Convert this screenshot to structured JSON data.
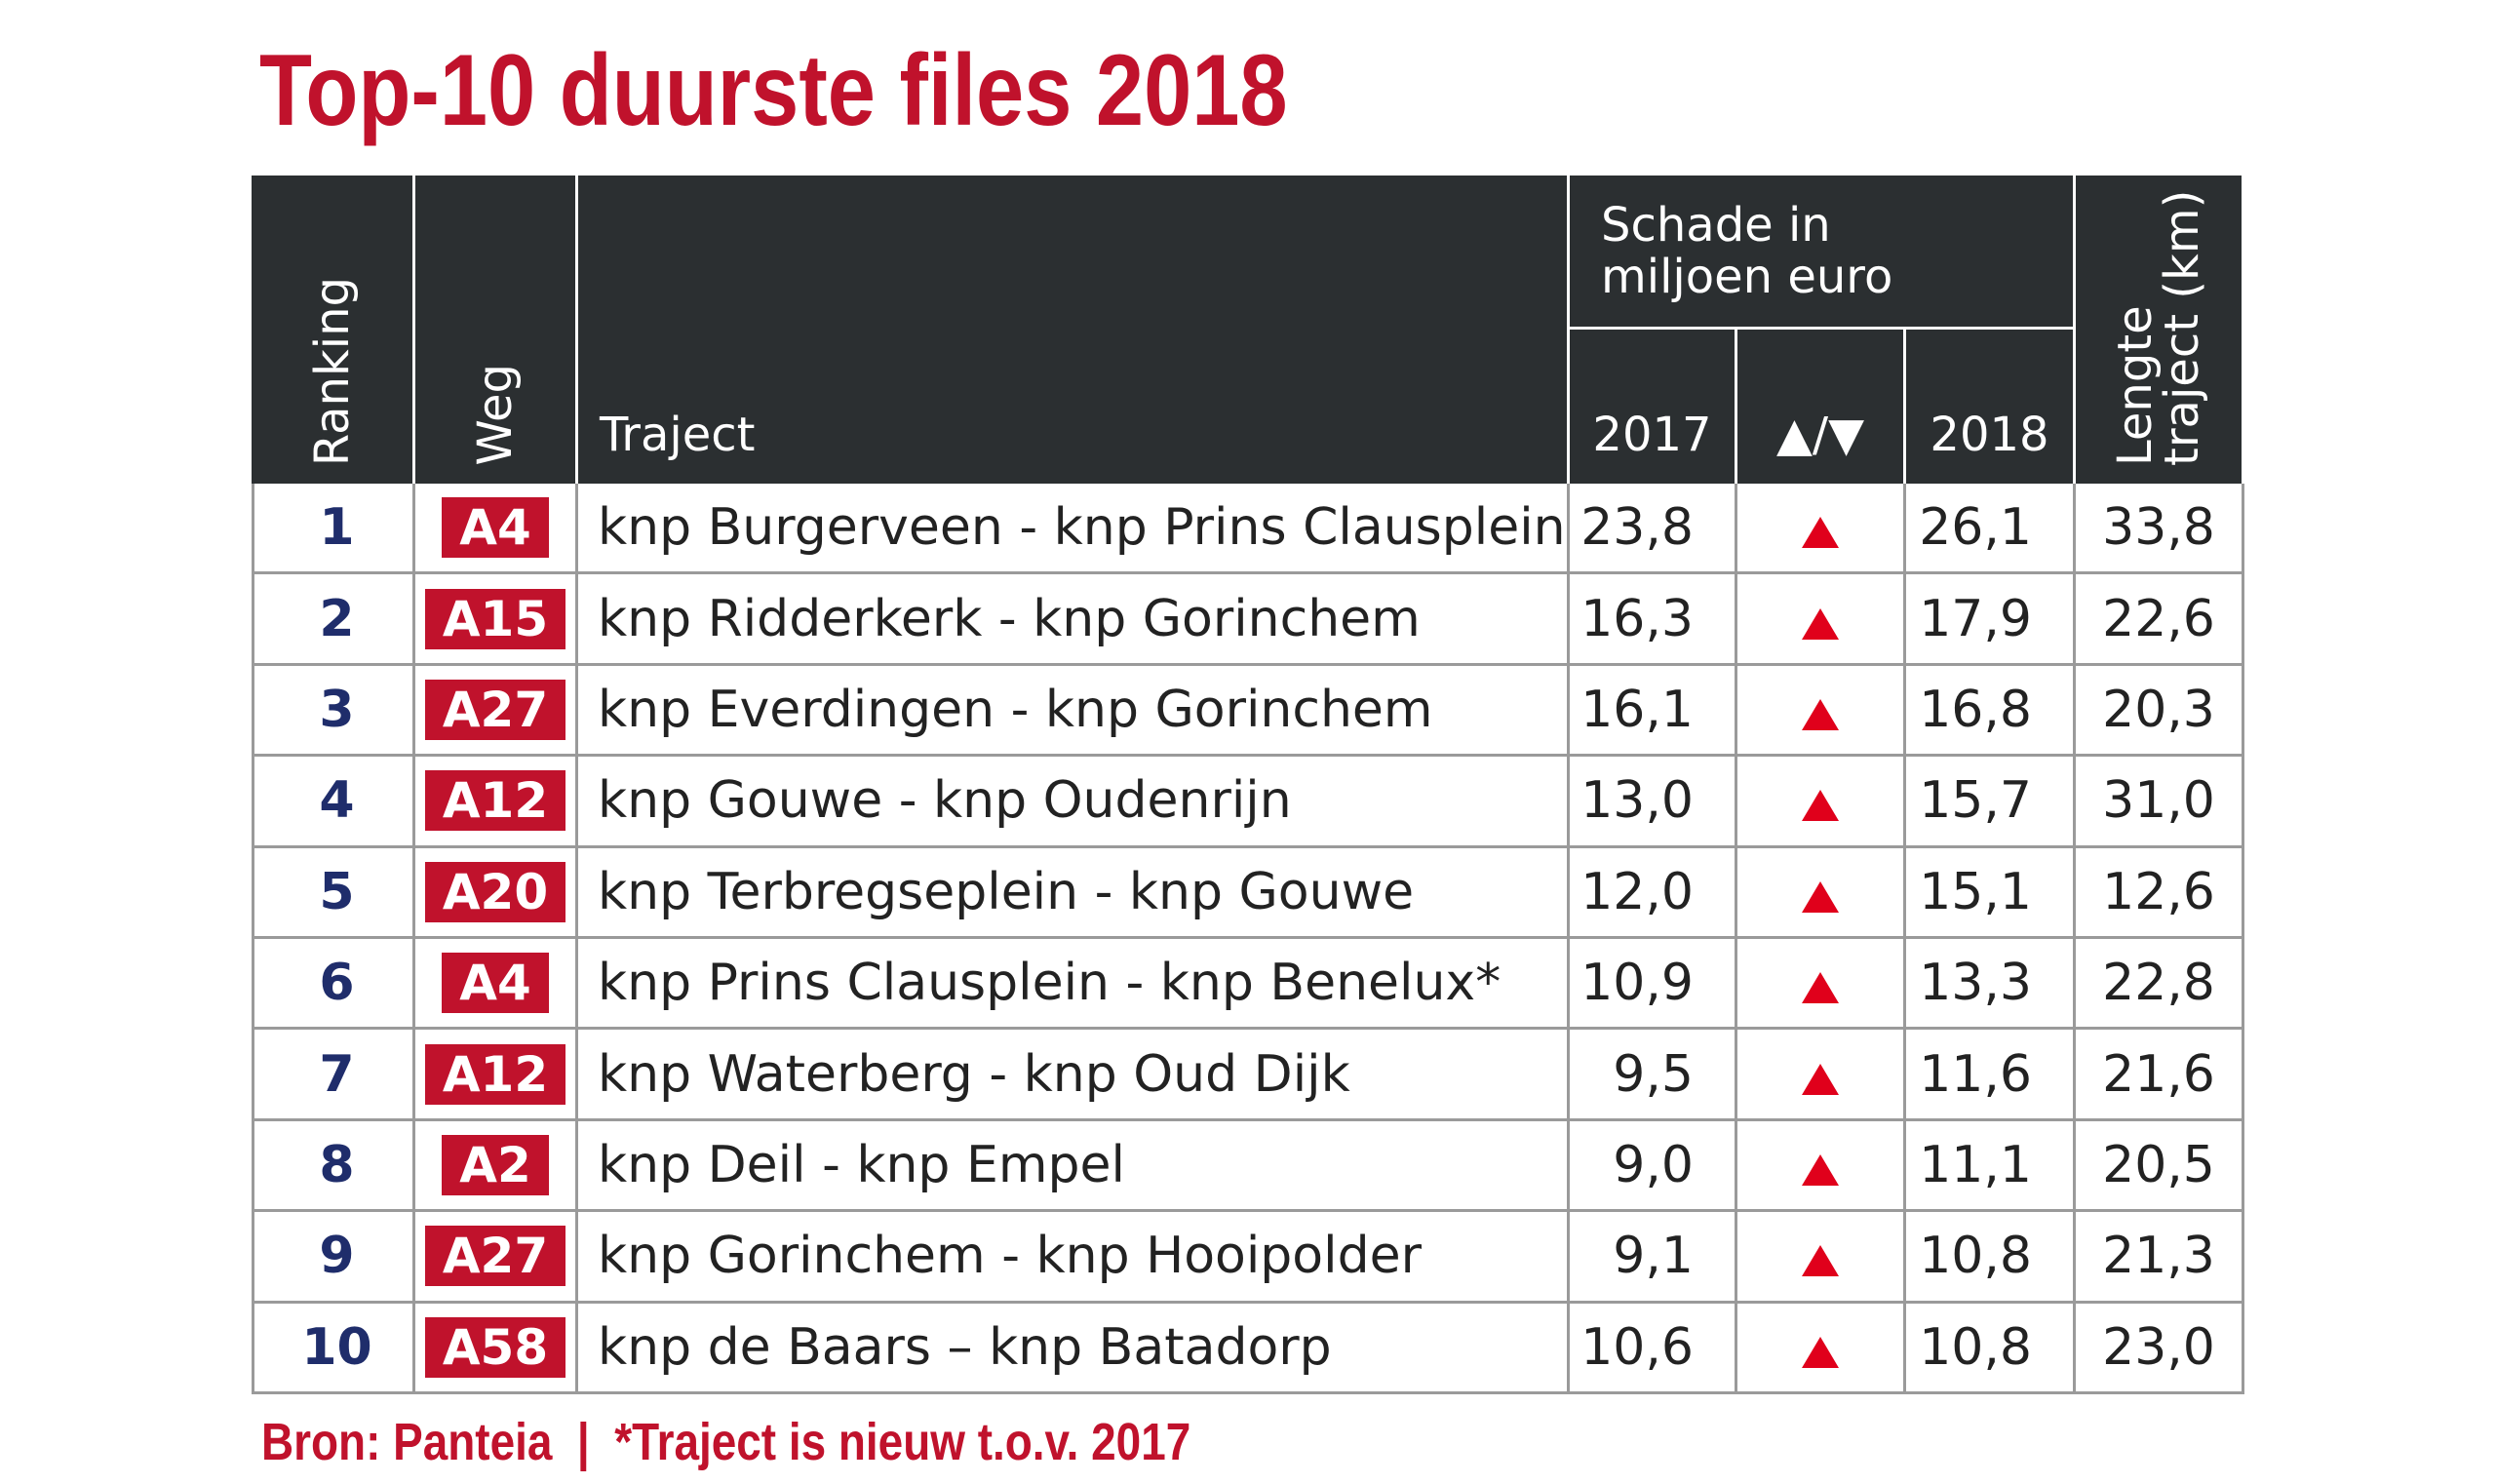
{
  "title": "Top-10 duurste files 2018",
  "table": {
    "headers": {
      "ranking": "Ranking",
      "weg": "Weg",
      "traject": "Traject",
      "schade": "Schade in miljoen euro",
      "year_2017": "2017",
      "change": "▲/▼",
      "year_2018": "2018",
      "lengte": "Lengte traject (km)"
    },
    "rows": [
      [
        1,
        "A4",
        "knp Burgerveen - knp Prins Clausplein",
        "23,8",
        "26,1",
        "33,8"
      ],
      [
        2,
        "A15",
        "knp Ridderkerk - knp Gorinchem",
        "16,3",
        "17,9",
        "22,6"
      ],
      [
        3,
        "A27",
        "knp Everdingen - knp Gorinchem",
        "16,1",
        "16,8",
        "20,3"
      ],
      [
        4,
        "A12",
        "knp Gouwe - knp Oudenrijn",
        "13,0",
        "15,7",
        "31,0"
      ],
      [
        5,
        "A20",
        "knp Terbregseplein - knp Gouwe",
        "12,0",
        "15,1",
        "12,6"
      ],
      [
        6,
        "A4",
        "knp Prins Clausplein - knp Benelux*",
        "10,9",
        "13,3",
        "22,8"
      ],
      [
        7,
        "A12",
        "knp Waterberg - knp Oud Dijk",
        "9,5",
        "11,6",
        "21,6"
      ],
      [
        8,
        "A2",
        "knp Deil - knp Empel",
        "9,0",
        "11,1",
        "20,5"
      ],
      [
        9,
        "A27",
        "knp Gorinchem - knp Hooipolder",
        "9,1",
        "10,8",
        "21,3"
      ],
      [
        10,
        "A58",
        "knp de Baars – knp Batadorp",
        "10,6",
        "10,8",
        "23,0"
      ]
    ]
  },
  "footer": "Bron: Panteia  |  *Traject is nieuw t.o.v. 2017"
}
